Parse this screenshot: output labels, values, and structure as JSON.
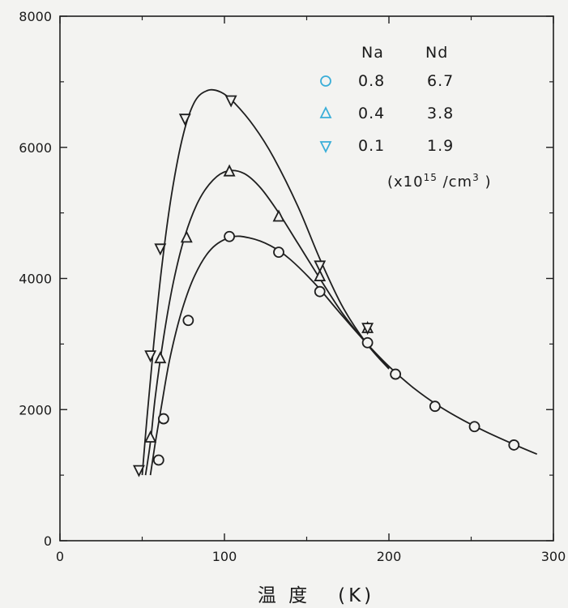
{
  "chart_data": {
    "type": "scatter",
    "title": "",
    "xlabel": "温 度   (K)",
    "ylabel": "",
    "xlim": [
      0,
      300
    ],
    "ylim": [
      0,
      8000
    ],
    "x_ticks": [
      0,
      100,
      200,
      300
    ],
    "y_ticks": [
      0,
      2000,
      4000,
      6000,
      8000
    ],
    "x_tick_labels": [
      "0",
      "100",
      "200",
      "300"
    ],
    "y_tick_labels": [
      "0",
      "2000",
      "4000",
      "6000",
      "8000"
    ],
    "minor_x_ticks": [
      50,
      150,
      250
    ],
    "minor_y_ticks": [
      1000,
      3000,
      5000,
      7000
    ],
    "grid": false,
    "legend": {
      "position": "top-right",
      "headers": [
        "Na",
        "Nd"
      ],
      "unit_note": "(x10^15 /cm^3)",
      "unit_prefix": "(x10",
      "unit_exp": "15",
      "unit_mid": " /cm",
      "unit_exp2": "3",
      "unit_suffix": " )"
    },
    "series": [
      {
        "marker": "circle",
        "na": "0.8",
        "nd": "6.7",
        "color": "#3aaed8",
        "points": [
          [
            60,
            1230
          ],
          [
            63,
            1860
          ],
          [
            78,
            3360
          ],
          [
            103,
            4640
          ],
          [
            133,
            4400
          ],
          [
            158,
            3800
          ],
          [
            187,
            3020
          ],
          [
            204,
            2540
          ],
          [
            228,
            2050
          ],
          [
            252,
            1740
          ],
          [
            276,
            1460
          ]
        ],
        "curve": [
          [
            55,
            1000
          ],
          [
            58,
            1500
          ],
          [
            62,
            2100
          ],
          [
            67,
            2800
          ],
          [
            74,
            3500
          ],
          [
            82,
            4050
          ],
          [
            92,
            4450
          ],
          [
            104,
            4630
          ],
          [
            115,
            4620
          ],
          [
            128,
            4500
          ],
          [
            140,
            4290
          ],
          [
            155,
            3920
          ],
          [
            170,
            3480
          ],
          [
            185,
            3050
          ],
          [
            200,
            2660
          ],
          [
            215,
            2330
          ],
          [
            230,
            2060
          ],
          [
            245,
            1840
          ],
          [
            260,
            1650
          ],
          [
            275,
            1480
          ],
          [
            290,
            1320
          ]
        ]
      },
      {
        "marker": "triangle-up",
        "na": "0.4",
        "nd": "3.8",
        "color": "#3aaed8",
        "points": [
          [
            55,
            1570
          ],
          [
            61,
            2780
          ],
          [
            77,
            4620
          ],
          [
            103,
            5630
          ],
          [
            133,
            4940
          ],
          [
            158,
            4030
          ],
          [
            187,
            3240
          ]
        ],
        "curve": [
          [
            52,
            1000
          ],
          [
            55,
            1500
          ],
          [
            58,
            2200
          ],
          [
            63,
            3100
          ],
          [
            69,
            3950
          ],
          [
            76,
            4650
          ],
          [
            84,
            5170
          ],
          [
            93,
            5500
          ],
          [
            102,
            5640
          ],
          [
            112,
            5600
          ],
          [
            122,
            5380
          ],
          [
            133,
            5000
          ],
          [
            145,
            4520
          ],
          [
            158,
            4000
          ],
          [
            172,
            3460
          ],
          [
            187,
            2990
          ],
          [
            200,
            2630
          ]
        ]
      },
      {
        "marker": "triangle-down",
        "na": "0.1",
        "nd": "1.9",
        "color": "#3aaed8",
        "points": [
          [
            48,
            1080
          ],
          [
            55,
            2830
          ],
          [
            61,
            4460
          ],
          [
            76,
            6440
          ],
          [
            104,
            6720
          ],
          [
            158,
            4200
          ],
          [
            187,
            3250
          ]
        ],
        "curve": [
          [
            50,
            1000
          ],
          [
            53,
            1900
          ],
          [
            57,
            3000
          ],
          [
            62,
            4200
          ],
          [
            68,
            5300
          ],
          [
            75,
            6200
          ],
          [
            82,
            6700
          ],
          [
            90,
            6870
          ],
          [
            98,
            6840
          ],
          [
            106,
            6680
          ],
          [
            118,
            6320
          ],
          [
            130,
            5840
          ],
          [
            145,
            5080
          ],
          [
            158,
            4300
          ],
          [
            172,
            3560
          ],
          [
            187,
            2990
          ],
          [
            200,
            2620
          ]
        ]
      }
    ]
  }
}
